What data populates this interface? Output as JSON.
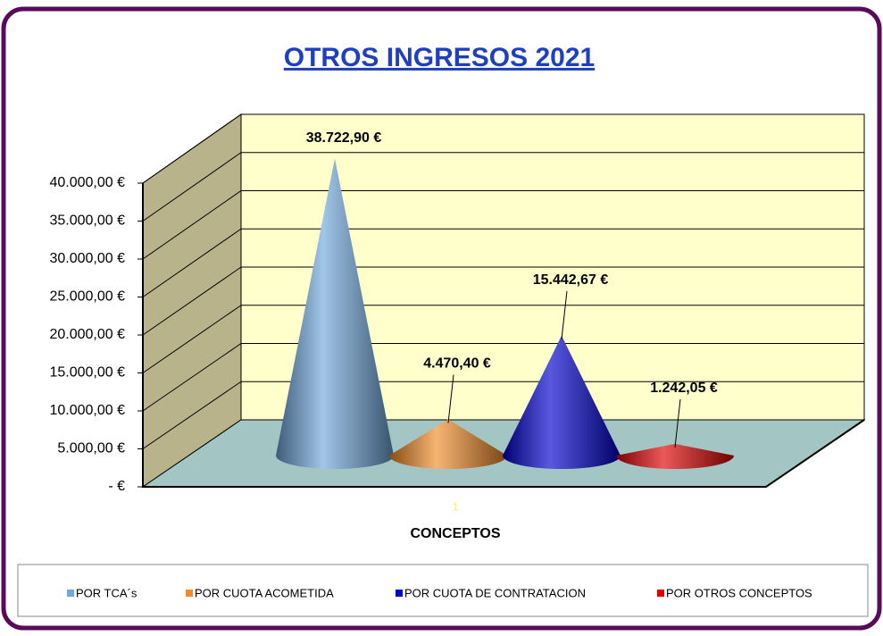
{
  "chart_data": {
    "type": "cone3d",
    "title": "OTROS INGRESOS 2021",
    "x_label": "CONCEPTOS",
    "categories": [
      "1"
    ],
    "series": [
      {
        "name": "POR TCA´s",
        "color": "#6fa8dc",
        "values": [
          38722.9
        ],
        "value_labels": [
          "38.722,90 €"
        ]
      },
      {
        "name": "POR CUOTA ACOMETIDA",
        "color": "#f28c28",
        "values": [
          4470.4
        ],
        "value_labels": [
          "4.470,40 €"
        ]
      },
      {
        "name": "POR CUOTA DE CONTRATACION",
        "color": "#0000d0",
        "values": [
          15442.67
        ],
        "value_labels": [
          "15.442,67 €"
        ]
      },
      {
        "name": "POR OTROS CONCEPTOS",
        "color": "#e00000",
        "values": [
          1242.05
        ],
        "value_labels": [
          "1.242,05 €"
        ]
      }
    ],
    "ylim": [
      0,
      40000
    ],
    "yticks": [
      {
        "value": 0,
        "label": "-  €"
      },
      {
        "value": 5000,
        "label": "5.000,00 €"
      },
      {
        "value": 10000,
        "label": "10.000,00 €"
      },
      {
        "value": 15000,
        "label": "15.000,00 €"
      },
      {
        "value": 20000,
        "label": "20.000,00 €"
      },
      {
        "value": 25000,
        "label": "25.000,00 €"
      },
      {
        "value": 30000,
        "label": "30.000,00 €"
      },
      {
        "value": 35000,
        "label": "35.000,00 €"
      },
      {
        "value": 40000,
        "label": "40.000,00 €"
      }
    ],
    "grid": true,
    "legend": "bottom"
  }
}
